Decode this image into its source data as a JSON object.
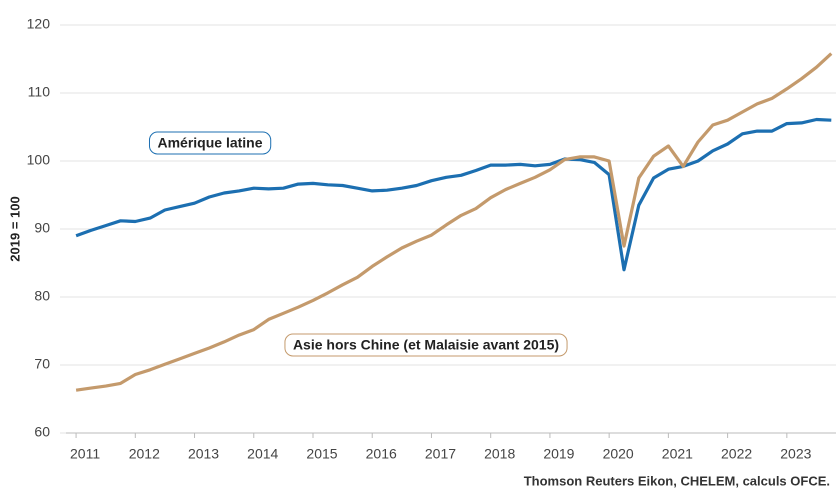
{
  "chart_data": {
    "type": "line",
    "y_label": "2019 = 100",
    "source": "Thomson Reuters Eikon, CHELEM, calculs OFCE.",
    "x": [
      2011,
      2011.25,
      2011.5,
      2011.75,
      2012,
      2012.25,
      2012.5,
      2012.75,
      2013,
      2013.25,
      2013.5,
      2013.75,
      2014,
      2014.25,
      2014.5,
      2014.75,
      2015,
      2015.25,
      2015.5,
      2015.75,
      2016,
      2016.25,
      2016.5,
      2016.75,
      2017,
      2017.25,
      2017.5,
      2017.75,
      2018,
      2018.25,
      2018.5,
      2018.75,
      2019,
      2019.25,
      2019.5,
      2019.75,
      2020,
      2020.25,
      2020.5,
      2020.75,
      2021,
      2021.25,
      2021.5,
      2021.75,
      2022,
      2022.25,
      2022.5,
      2022.75,
      2023,
      2023.25,
      2023.5,
      2023.75
    ],
    "series": [
      {
        "name": "Amérique latine",
        "color": "#1c6fb1",
        "values": [
          89.0,
          89.8,
          90.5,
          91.2,
          91.1,
          91.6,
          92.8,
          93.3,
          93.8,
          94.7,
          95.3,
          95.6,
          96.0,
          95.9,
          96.0,
          96.6,
          96.7,
          96.5,
          96.4,
          96.0,
          95.6,
          95.7,
          96.0,
          96.4,
          97.1,
          97.6,
          97.9,
          98.6,
          99.4,
          99.4,
          99.5,
          99.3,
          99.5,
          100.3,
          100.2,
          99.8,
          98.0,
          84.0,
          93.5,
          97.5,
          98.8,
          99.2,
          100.0,
          101.5,
          102.5,
          104.0,
          104.4,
          104.4,
          105.5,
          105.6,
          106.1,
          106.0
        ]
      },
      {
        "name": "Asie hors Chine (et Malaisie avant 2015)",
        "color": "#c49a6c",
        "values": [
          66.3,
          66.6,
          66.9,
          67.3,
          68.6,
          69.3,
          70.1,
          70.9,
          71.7,
          72.5,
          73.4,
          74.4,
          75.2,
          76.7,
          77.6,
          78.5,
          79.5,
          80.6,
          81.8,
          82.9,
          84.5,
          85.9,
          87.2,
          88.2,
          89.1,
          90.6,
          92.0,
          93.0,
          94.6,
          95.8,
          96.7,
          97.6,
          98.7,
          100.2,
          100.6,
          100.6,
          100.0,
          87.5,
          97.5,
          100.7,
          102.2,
          99.2,
          102.8,
          105.3,
          106.0,
          107.2,
          108.4,
          109.2,
          110.6,
          112.1,
          113.8,
          115.8
        ]
      }
    ],
    "xlim": [
      2010.83,
      2023.83
    ],
    "xticks": [
      2011,
      2012,
      2013,
      2014,
      2015,
      2016,
      2017,
      2018,
      2019,
      2020,
      2021,
      2022,
      2023
    ],
    "ylim": [
      60,
      120
    ],
    "yticks": [
      60,
      70,
      80,
      90,
      100,
      110,
      120
    ],
    "grid": true
  }
}
